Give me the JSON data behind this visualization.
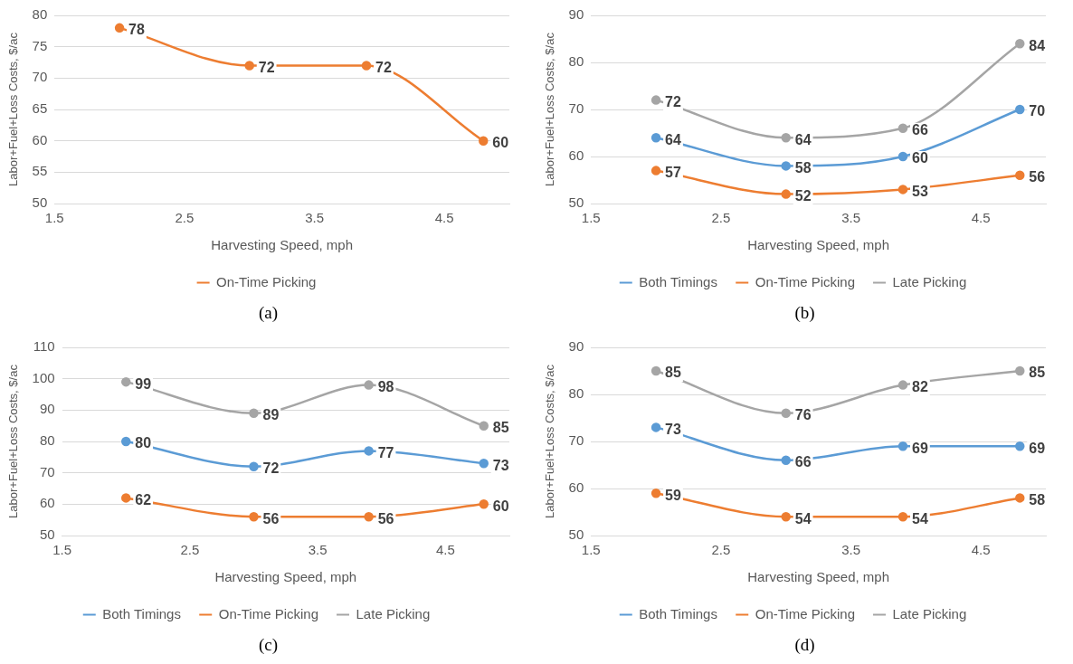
{
  "chart_data": [
    {
      "type": "line",
      "xlabel": "Harvesting Speed, mph",
      "ylabel": "Labor+Fuel+Loss Costs, $/ac",
      "x": [
        2.0,
        3.0,
        3.9,
        4.8
      ],
      "xlim": [
        1.5,
        5
      ],
      "xticks": [
        1.5,
        2.5,
        3.5,
        4.5
      ],
      "ylim": [
        50,
        80
      ],
      "yticks": [
        50,
        55,
        60,
        65,
        70,
        75,
        80
      ],
      "grid": "y",
      "legend": "bottom",
      "marker": "circle",
      "data_labels": true,
      "annotations": [
        "(a)"
      ],
      "series": [
        {
          "name": "On-Time Picking",
          "color": "#ed7d31",
          "values": [
            78,
            72,
            72,
            60
          ]
        }
      ]
    },
    {
      "type": "line",
      "xlabel": "Harvesting Speed, mph",
      "ylabel": "Labor+Fuel+Loss Costs, $/ac",
      "x": [
        2.0,
        3.0,
        3.9,
        4.8
      ],
      "xlim": [
        1.5,
        5
      ],
      "xticks": [
        1.5,
        2.5,
        3.5,
        4.5
      ],
      "ylim": [
        50,
        90
      ],
      "yticks": [
        50,
        60,
        70,
        80,
        90
      ],
      "grid": "y",
      "legend": "bottom",
      "marker": "circle",
      "data_labels": true,
      "annotations": [
        "(b)"
      ],
      "series": [
        {
          "name": "Both Timings",
          "color": "#5b9bd5",
          "values": [
            64,
            58,
            60,
            70
          ]
        },
        {
          "name": "On-Time Picking",
          "color": "#ed7d31",
          "values": [
            57,
            52,
            53,
            56
          ]
        },
        {
          "name": "Late Picking",
          "color": "#a5a5a5",
          "values": [
            72,
            64,
            66,
            84
          ]
        }
      ]
    },
    {
      "type": "line",
      "xlabel": "Harvesting Speed, mph",
      "ylabel": "Labor+Fuel+Loss Costs, $/ac",
      "x": [
        2.0,
        3.0,
        3.9,
        4.8
      ],
      "xlim": [
        1.5,
        5
      ],
      "xticks": [
        1.5,
        2.5,
        3.5,
        4.5
      ],
      "ylim": [
        50,
        110
      ],
      "yticks": [
        50,
        60,
        70,
        80,
        90,
        100,
        110
      ],
      "grid": "y",
      "legend": "bottom",
      "marker": "circle",
      "data_labels": true,
      "annotations": [
        "(c)"
      ],
      "series": [
        {
          "name": "Both Timings",
          "color": "#5b9bd5",
          "values": [
            80,
            72,
            77,
            73
          ]
        },
        {
          "name": "On-Time Picking",
          "color": "#ed7d31",
          "values": [
            62,
            56,
            56,
            60
          ]
        },
        {
          "name": "Late Picking",
          "color": "#a5a5a5",
          "values": [
            99,
            89,
            98,
            85
          ]
        }
      ]
    },
    {
      "type": "line",
      "xlabel": "Harvesting Speed, mph",
      "ylabel": "Labor+Fuel+Loss Costs, $/ac",
      "x": [
        2.0,
        3.0,
        3.9,
        4.8
      ],
      "xlim": [
        1.5,
        5
      ],
      "xticks": [
        1.5,
        2.5,
        3.5,
        4.5
      ],
      "ylim": [
        50,
        90
      ],
      "yticks": [
        50,
        60,
        70,
        80,
        90
      ],
      "grid": "y",
      "legend": "bottom",
      "marker": "circle",
      "data_labels": true,
      "annotations": [
        "(d)"
      ],
      "series": [
        {
          "name": "Both Timings",
          "color": "#5b9bd5",
          "values": [
            73,
            66,
            69,
            69
          ]
        },
        {
          "name": "On-Time Picking",
          "color": "#ed7d31",
          "values": [
            59,
            54,
            54,
            58
          ]
        },
        {
          "name": "Late Picking",
          "color": "#a5a5a5",
          "values": [
            85,
            76,
            82,
            85
          ]
        }
      ]
    }
  ]
}
